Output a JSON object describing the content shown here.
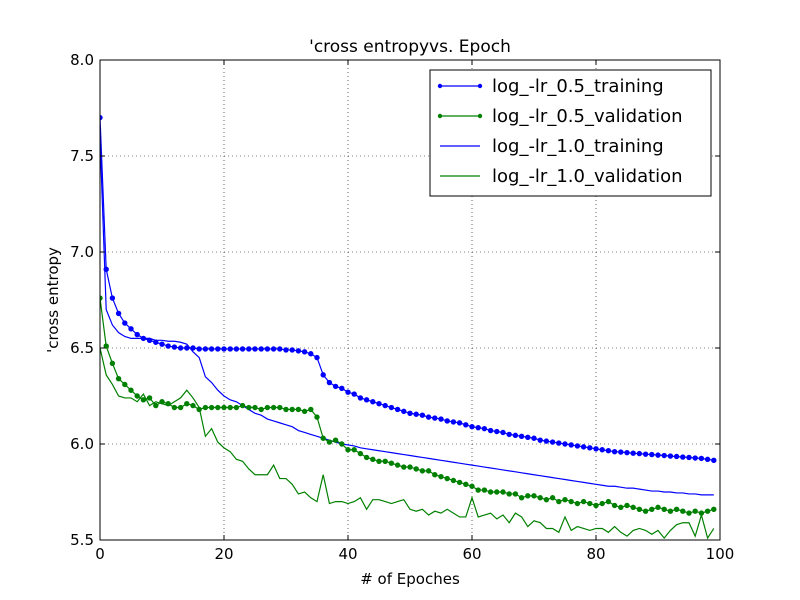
{
  "chart_data": {
    "type": "line",
    "title": "'cross entropyvs. Epoch",
    "xlabel": "# of Epoches",
    "ylabel": "'cross entropy",
    "xlim": [
      0,
      100
    ],
    "ylim": [
      5.5,
      8.0
    ],
    "xticks": [
      "0",
      "20",
      "40",
      "60",
      "80",
      "100"
    ],
    "yticks": [
      "5.5",
      "6.0",
      "6.5",
      "7.0",
      "7.5",
      "8.0"
    ],
    "grid": true,
    "legend_position": "top-right",
    "series": [
      {
        "name": "log_-lr_0.5_training",
        "color": "#0000ff",
        "markers": true,
        "x": [
          0,
          1,
          2,
          3,
          4,
          5,
          6,
          7,
          8,
          9,
          10,
          11,
          12,
          13,
          14,
          15,
          16,
          17,
          18,
          19,
          20,
          21,
          22,
          23,
          24,
          25,
          26,
          27,
          28,
          29,
          30,
          31,
          32,
          33,
          34,
          35,
          36,
          37,
          38,
          39,
          40,
          41,
          42,
          43,
          44,
          45,
          46,
          47,
          48,
          49,
          50,
          51,
          52,
          53,
          54,
          55,
          56,
          57,
          58,
          59,
          60,
          61,
          62,
          63,
          64,
          65,
          66,
          67,
          68,
          69,
          70,
          71,
          72,
          73,
          74,
          75,
          76,
          77,
          78,
          79,
          80,
          81,
          82,
          83,
          84,
          85,
          86,
          87,
          88,
          89,
          90,
          91,
          92,
          93,
          94,
          95,
          96,
          97,
          98,
          99
        ],
        "values": [
          7.7,
          6.91,
          6.76,
          6.68,
          6.63,
          6.6,
          6.57,
          6.55,
          6.54,
          6.53,
          6.52,
          6.51,
          6.505,
          6.5,
          6.5,
          6.5,
          6.495,
          6.495,
          6.495,
          6.495,
          6.495,
          6.495,
          6.495,
          6.495,
          6.495,
          6.495,
          6.495,
          6.495,
          6.495,
          6.495,
          6.49,
          6.49,
          6.485,
          6.48,
          6.47,
          6.45,
          6.36,
          6.32,
          6.3,
          6.29,
          6.27,
          6.26,
          6.24,
          6.23,
          6.22,
          6.21,
          6.2,
          6.19,
          6.18,
          6.17,
          6.16,
          6.155,
          6.15,
          6.14,
          6.135,
          6.13,
          6.12,
          6.115,
          6.11,
          6.1,
          6.09,
          6.085,
          6.08,
          6.07,
          6.065,
          6.06,
          6.05,
          6.045,
          6.04,
          6.035,
          6.03,
          6.02,
          6.015,
          6.01,
          6.005,
          6.0,
          5.995,
          5.99,
          5.985,
          5.98,
          5.975,
          5.97,
          5.965,
          5.96,
          5.958,
          5.955,
          5.952,
          5.95,
          5.947,
          5.945,
          5.942,
          5.94,
          5.937,
          5.935,
          5.932,
          5.93,
          5.927,
          5.925,
          5.92,
          5.915
        ]
      },
      {
        "name": "log_-lr_0.5_validation",
        "color": "#008000",
        "markers": true,
        "x": [
          0,
          1,
          2,
          3,
          4,
          5,
          6,
          7,
          8,
          9,
          10,
          11,
          12,
          13,
          14,
          15,
          16,
          17,
          18,
          19,
          20,
          21,
          22,
          23,
          24,
          25,
          26,
          27,
          28,
          29,
          30,
          31,
          32,
          33,
          34,
          35,
          36,
          37,
          38,
          39,
          40,
          41,
          42,
          43,
          44,
          45,
          46,
          47,
          48,
          49,
          50,
          51,
          52,
          53,
          54,
          55,
          56,
          57,
          58,
          59,
          60,
          61,
          62,
          63,
          64,
          65,
          66,
          67,
          68,
          69,
          70,
          71,
          72,
          73,
          74,
          75,
          76,
          77,
          78,
          79,
          80,
          81,
          82,
          83,
          84,
          85,
          86,
          87,
          88,
          89,
          90,
          91,
          92,
          93,
          94,
          95,
          96,
          97,
          98,
          99
        ],
        "values": [
          6.76,
          6.51,
          6.42,
          6.34,
          6.31,
          6.28,
          6.25,
          6.23,
          6.24,
          6.2,
          6.22,
          6.21,
          6.19,
          6.19,
          6.21,
          6.2,
          6.18,
          6.19,
          6.19,
          6.19,
          6.19,
          6.19,
          6.19,
          6.2,
          6.19,
          6.19,
          6.18,
          6.19,
          6.19,
          6.19,
          6.18,
          6.18,
          6.18,
          6.17,
          6.18,
          6.14,
          6.03,
          6.01,
          6.02,
          6.0,
          5.97,
          5.97,
          5.95,
          5.93,
          5.92,
          5.91,
          5.91,
          5.9,
          5.89,
          5.88,
          5.88,
          5.87,
          5.86,
          5.86,
          5.84,
          5.83,
          5.82,
          5.81,
          5.8,
          5.79,
          5.78,
          5.76,
          5.76,
          5.75,
          5.75,
          5.75,
          5.74,
          5.74,
          5.72,
          5.73,
          5.73,
          5.72,
          5.71,
          5.72,
          5.7,
          5.71,
          5.7,
          5.69,
          5.7,
          5.69,
          5.68,
          5.69,
          5.7,
          5.68,
          5.67,
          5.68,
          5.67,
          5.66,
          5.65,
          5.66,
          5.67,
          5.66,
          5.65,
          5.66,
          5.65,
          5.64,
          5.65,
          5.64,
          5.65,
          5.66
        ]
      },
      {
        "name": "log_-lr_1.0_training",
        "color": "#0000ff",
        "markers": false,
        "x": [
          0,
          1,
          2,
          3,
          4,
          5,
          6,
          7,
          8,
          9,
          10,
          11,
          12,
          13,
          14,
          15,
          16,
          17,
          18,
          19,
          20,
          21,
          22,
          23,
          24,
          25,
          26,
          27,
          28,
          29,
          30,
          31,
          32,
          33,
          34,
          35,
          36,
          37,
          38,
          39,
          40,
          41,
          42,
          43,
          44,
          45,
          46,
          47,
          48,
          49,
          50,
          51,
          52,
          53,
          54,
          55,
          56,
          57,
          58,
          59,
          60,
          61,
          62,
          63,
          64,
          65,
          66,
          67,
          68,
          69,
          70,
          71,
          72,
          73,
          74,
          75,
          76,
          77,
          78,
          79,
          80,
          81,
          82,
          83,
          84,
          85,
          86,
          87,
          88,
          89,
          90,
          91,
          92,
          93,
          94,
          95,
          96,
          97,
          98,
          99
        ],
        "values": [
          7.6,
          6.7,
          6.62,
          6.58,
          6.56,
          6.55,
          6.55,
          6.55,
          6.55,
          6.54,
          6.54,
          6.535,
          6.535,
          6.53,
          6.52,
          6.48,
          6.45,
          6.35,
          6.32,
          6.28,
          6.25,
          6.23,
          6.22,
          6.2,
          6.18,
          6.16,
          6.15,
          6.13,
          6.12,
          6.11,
          6.1,
          6.09,
          6.07,
          6.06,
          6.05,
          6.04,
          6.03,
          6.02,
          6.01,
          6.0,
          5.995,
          5.99,
          5.98,
          5.975,
          5.97,
          5.965,
          5.96,
          5.955,
          5.95,
          5.945,
          5.94,
          5.935,
          5.93,
          5.925,
          5.92,
          5.915,
          5.91,
          5.905,
          5.9,
          5.895,
          5.89,
          5.885,
          5.88,
          5.875,
          5.87,
          5.865,
          5.86,
          5.855,
          5.85,
          5.845,
          5.84,
          5.835,
          5.83,
          5.825,
          5.82,
          5.815,
          5.81,
          5.805,
          5.8,
          5.795,
          5.79,
          5.785,
          5.78,
          5.78,
          5.775,
          5.77,
          5.77,
          5.765,
          5.76,
          5.755,
          5.755,
          5.75,
          5.75,
          5.745,
          5.745,
          5.74,
          5.74,
          5.735,
          5.735,
          5.735
        ]
      },
      {
        "name": "log_-lr_1.0_validation",
        "color": "#008000",
        "markers": false,
        "x": [
          0,
          1,
          2,
          3,
          4,
          5,
          6,
          7,
          8,
          9,
          10,
          11,
          12,
          13,
          14,
          15,
          16,
          17,
          18,
          19,
          20,
          21,
          22,
          23,
          24,
          25,
          26,
          27,
          28,
          29,
          30,
          31,
          32,
          33,
          34,
          35,
          36,
          37,
          38,
          39,
          40,
          41,
          42,
          43,
          44,
          45,
          46,
          47,
          48,
          49,
          50,
          51,
          52,
          53,
          54,
          55,
          56,
          57,
          58,
          59,
          60,
          61,
          62,
          63,
          64,
          65,
          66,
          67,
          68,
          69,
          70,
          71,
          72,
          73,
          74,
          75,
          76,
          77,
          78,
          79,
          80,
          81,
          82,
          83,
          84,
          85,
          86,
          87,
          88,
          89,
          90,
          91,
          92,
          93,
          94,
          95,
          96,
          97,
          98,
          99
        ],
        "values": [
          6.5,
          6.36,
          6.31,
          6.25,
          6.24,
          6.24,
          6.22,
          6.26,
          6.2,
          6.22,
          6.21,
          6.2,
          6.22,
          6.24,
          6.28,
          6.24,
          6.19,
          6.04,
          6.08,
          6.01,
          5.98,
          5.96,
          5.92,
          5.91,
          5.87,
          5.84,
          5.84,
          5.84,
          5.89,
          5.82,
          5.82,
          5.79,
          5.74,
          5.75,
          5.72,
          5.7,
          5.84,
          5.69,
          5.7,
          5.7,
          5.69,
          5.7,
          5.72,
          5.66,
          5.71,
          5.71,
          5.7,
          5.69,
          5.7,
          5.71,
          5.66,
          5.65,
          5.66,
          5.63,
          5.65,
          5.64,
          5.66,
          5.64,
          5.62,
          5.62,
          5.72,
          5.62,
          5.63,
          5.64,
          5.61,
          5.63,
          5.59,
          5.64,
          5.62,
          5.57,
          5.6,
          5.59,
          5.56,
          5.56,
          5.54,
          5.62,
          5.55,
          5.57,
          5.56,
          5.55,
          5.56,
          5.56,
          5.54,
          5.57,
          5.54,
          5.52,
          5.55,
          5.56,
          5.55,
          5.53,
          5.55,
          5.51,
          5.55,
          5.58,
          5.59,
          5.59,
          5.52,
          5.63,
          5.51,
          5.56
        ]
      }
    ]
  }
}
